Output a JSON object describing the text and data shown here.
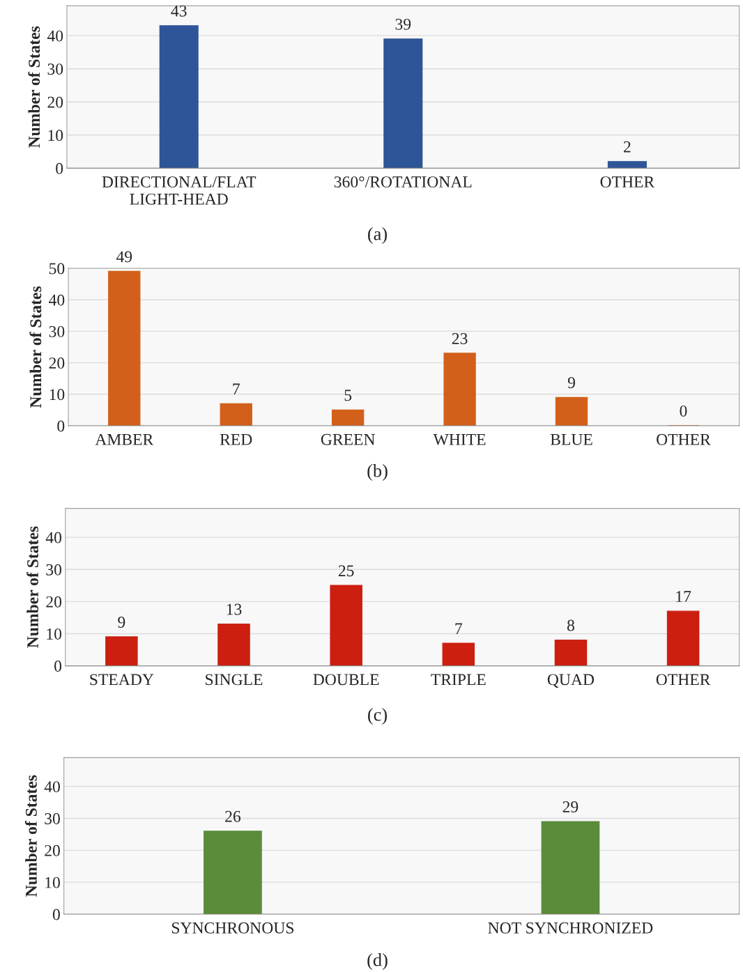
{
  "chart_data": [
    {
      "type": "bar",
      "ylabel": "Number of States",
      "categories": [
        "DIRECTIONAL/FLAT\nLIGHT-HEAD",
        "360°/ROTATIONAL",
        "OTHER"
      ],
      "values": [
        43,
        39,
        2
      ],
      "color": "#2e5597",
      "ylim": [
        0,
        49
      ],
      "yticks": [
        0,
        10,
        20,
        30,
        40
      ],
      "grid": "y",
      "data_labels": true,
      "annotations": [
        "(a)"
      ]
    },
    {
      "type": "bar",
      "ylabel": "Number of States",
      "categories": [
        "AMBER",
        "RED",
        "GREEN",
        "WHITE",
        "BLUE",
        "OTHER"
      ],
      "values": [
        49,
        7,
        5,
        23,
        9,
        0
      ],
      "color": "#d2601a",
      "ylim": [
        0,
        50
      ],
      "yticks": [
        0,
        10,
        20,
        30,
        40,
        50
      ],
      "grid": "y",
      "data_labels": true,
      "annotations": [
        "(b)"
      ]
    },
    {
      "type": "bar",
      "ylabel": "Number of States",
      "categories": [
        "STEADY",
        "SINGLE",
        "DOUBLE",
        "TRIPLE",
        "QUAD",
        "OTHER"
      ],
      "values": [
        9,
        13,
        25,
        7,
        8,
        17
      ],
      "color": "#cc1f10",
      "ylim": [
        0,
        49
      ],
      "yticks": [
        0,
        10,
        20,
        30,
        40
      ],
      "grid": "y",
      "data_labels": true,
      "annotations": [
        "(c)"
      ]
    },
    {
      "type": "bar",
      "ylabel": "Number of States",
      "categories": [
        "SYNCHRONOUS",
        "NOT SYNCHRONIZED"
      ],
      "values": [
        26,
        29
      ],
      "color": "#5b8c3a",
      "ylim": [
        0,
        49
      ],
      "yticks": [
        0,
        10,
        20,
        30,
        40
      ],
      "grid": "y",
      "data_labels": true,
      "annotations": [
        "(d)"
      ]
    }
  ]
}
